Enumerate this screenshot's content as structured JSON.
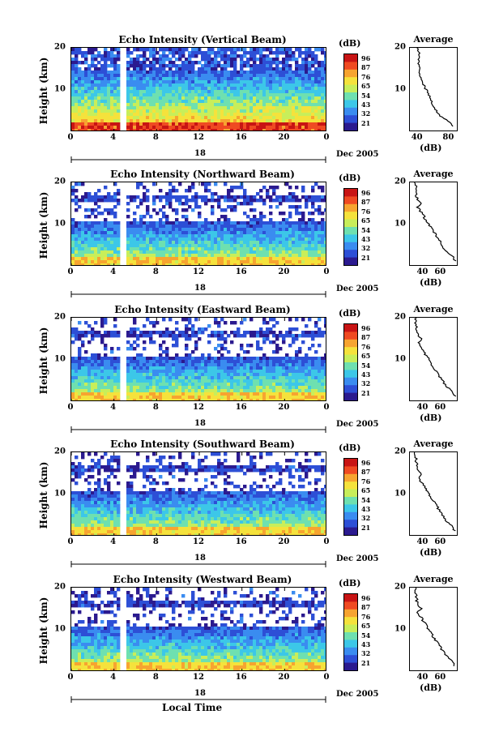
{
  "panels": [
    {
      "title": "Echo Intensity (Vertical Beam)",
      "ylabel": "Height (km)",
      "yticks": [
        "20",
        "10"
      ],
      "xticks": [
        "0",
        "4",
        "8",
        "12",
        "16",
        "20",
        "0"
      ],
      "date_label": "18",
      "month_label": "Dec 2005",
      "cb_label": "(dB)",
      "cb_ticks": [
        "96",
        "87",
        "76",
        "65",
        "54",
        "43",
        "32",
        "21"
      ],
      "avg_title": "Average",
      "avg_xlabel": "(dB)",
      "avg_xticks": [
        "40",
        "80"
      ],
      "avg_yticks": [
        "20",
        "10"
      ]
    },
    {
      "title": "Echo Intensity (Northward Beam)",
      "ylabel": "Height (km)",
      "yticks": [
        "20",
        "10"
      ],
      "xticks": [
        "0",
        "4",
        "8",
        "12",
        "16",
        "20",
        "0"
      ],
      "date_label": "18",
      "month_label": "Dec 2005",
      "cb_label": "(dB)",
      "cb_ticks": [
        "96",
        "87",
        "76",
        "65",
        "54",
        "43",
        "32",
        "21"
      ],
      "avg_title": "Average",
      "avg_xlabel": "(dB)",
      "avg_xticks": [
        "40",
        "60"
      ],
      "avg_yticks": [
        "20",
        "10"
      ]
    },
    {
      "title": "Echo Intensity (Eastward Beam)",
      "ylabel": "Height (km)",
      "yticks": [
        "20",
        "10"
      ],
      "xticks": [
        "0",
        "4",
        "8",
        "12",
        "16",
        "20",
        "0"
      ],
      "date_label": "18",
      "month_label": "Dec 2005",
      "cb_label": "(dB)",
      "cb_ticks": [
        "96",
        "87",
        "76",
        "65",
        "54",
        "43",
        "32",
        "21"
      ],
      "avg_title": "Average",
      "avg_xlabel": "(dB)",
      "avg_xticks": [
        "40",
        "60"
      ],
      "avg_yticks": [
        "20",
        "10"
      ]
    },
    {
      "title": "Echo Intensity (Southward Beam)",
      "ylabel": "Height (km)",
      "yticks": [
        "20",
        "10"
      ],
      "xticks": [
        "0",
        "4",
        "8",
        "12",
        "16",
        "20",
        "0"
      ],
      "date_label": "18",
      "month_label": "Dec 2005",
      "cb_label": "(dB)",
      "cb_ticks": [
        "96",
        "87",
        "76",
        "65",
        "54",
        "43",
        "32",
        "21"
      ],
      "avg_title": "Average",
      "avg_xlabel": "(dB)",
      "avg_xticks": [
        "40",
        "60"
      ],
      "avg_yticks": [
        "20",
        "10"
      ]
    },
    {
      "title": "Echo Intensity (Westward Beam)",
      "ylabel": "Height (km)",
      "yticks": [
        "20",
        "10"
      ],
      "xticks": [
        "0",
        "4",
        "8",
        "12",
        "16",
        "20",
        "0"
      ],
      "date_label": "18",
      "month_label": "Dec 2005",
      "cb_label": "(dB)",
      "cb_ticks": [
        "96",
        "87",
        "76",
        "65",
        "54",
        "43",
        "32",
        "21"
      ],
      "avg_title": "Average",
      "avg_xlabel": "(dB)",
      "avg_xticks": [
        "40",
        "60"
      ],
      "avg_yticks": [
        "20",
        "10"
      ]
    }
  ],
  "xlabel_bottom": "Local Time",
  "colors": {
    "colormap": [
      "#2b1a8f",
      "#2d4fd6",
      "#3a8cf0",
      "#3cc7e8",
      "#6ee0b0",
      "#c8ee5a",
      "#f5e23c",
      "#f7a430",
      "#ef4a22",
      "#c81414"
    ]
  },
  "chart_data": [
    {
      "type": "heatmap",
      "panel": "Vertical Beam",
      "x_range_hours": [
        0,
        24
      ],
      "y_range_km": [
        0,
        20
      ],
      "color_range_db": [
        21,
        96
      ],
      "data_gap_hours": [
        4.7,
        5.3
      ],
      "avg_profile": {
        "height_km": [
          1,
          2,
          4,
          6,
          8,
          10,
          12,
          14,
          15,
          16,
          18,
          20
        ],
        "echo_db": [
          84,
          80,
          66,
          60,
          56,
          50,
          46,
          42,
          44,
          40,
          42,
          40
        ]
      }
    },
    {
      "type": "heatmap",
      "panel": "Northward Beam",
      "x_range_hours": [
        0,
        24
      ],
      "y_range_km": [
        0,
        20
      ],
      "color_range_db": [
        21,
        96
      ],
      "data_gap_hours": [
        4.7,
        5.3
      ],
      "avg_profile": {
        "height_km": [
          1,
          2,
          4,
          6,
          8,
          10,
          12,
          14,
          15,
          16,
          18,
          20
        ],
        "echo_db": [
          76,
          74,
          64,
          58,
          52,
          46,
          40,
          34,
          38,
          33,
          32,
          31
        ]
      }
    },
    {
      "type": "heatmap",
      "panel": "Eastward Beam",
      "x_range_hours": [
        0,
        24
      ],
      "y_range_km": [
        0,
        20
      ],
      "color_range_db": [
        21,
        96
      ],
      "data_gap_hours": [
        4.7,
        5.3
      ],
      "avg_profile": {
        "height_km": [
          1,
          2,
          4,
          6,
          8,
          10,
          12,
          14,
          15,
          16,
          18,
          20
        ],
        "echo_db": [
          76,
          73,
          64,
          58,
          52,
          46,
          40,
          34,
          38,
          33,
          32,
          31
        ]
      }
    },
    {
      "type": "heatmap",
      "panel": "Southward Beam",
      "x_range_hours": [
        0,
        24
      ],
      "y_range_km": [
        0,
        20
      ],
      "color_range_db": [
        21,
        96
      ],
      "data_gap_hours": [
        4.7,
        5.3
      ],
      "avg_profile": {
        "height_km": [
          1,
          2,
          4,
          6,
          8,
          10,
          12,
          14,
          15,
          16,
          18,
          20
        ],
        "echo_db": [
          76,
          73,
          64,
          58,
          52,
          46,
          40,
          34,
          38,
          33,
          32,
          31
        ]
      }
    },
    {
      "type": "heatmap",
      "panel": "Westward Beam",
      "x_range_hours": [
        0,
        24
      ],
      "y_range_km": [
        0,
        20
      ],
      "color_range_db": [
        21,
        96
      ],
      "data_gap_hours": [
        4.7,
        5.3
      ],
      "avg_profile": {
        "height_km": [
          1,
          2,
          4,
          6,
          8,
          10,
          12,
          14,
          15,
          16,
          18,
          20
        ],
        "echo_db": [
          76,
          73,
          64,
          58,
          52,
          46,
          40,
          34,
          38,
          33,
          32,
          31
        ]
      }
    }
  ]
}
